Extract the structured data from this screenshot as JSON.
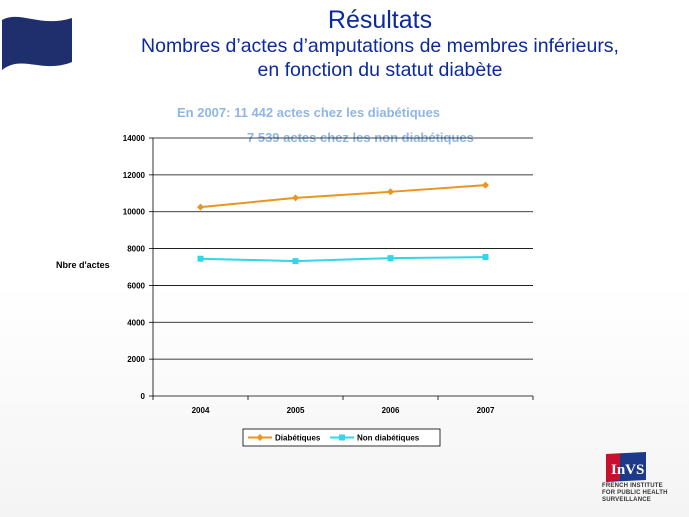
{
  "slide": {
    "title": "Résultats",
    "subtitle_line1": "Nombres d’actes d’amputations de membres inférieurs,",
    "subtitle_line2": "en fonction du statut diabète",
    "note_line1": "En 2007: 11 442 actes chez les diabétiques",
    "note_line2": "7 539 actes chez les non diabétiques"
  },
  "logo": {
    "mark": "InVS",
    "line1": "FRENCH INSTITUTE",
    "line2": "FOR PUBLIC HEALTH",
    "line3": "SURVEILLANCE"
  },
  "chart_data": {
    "type": "line",
    "title": "",
    "xlabel": "",
    "ylabel": "Nbre d'actes",
    "x": [
      "2004",
      "2005",
      "2006",
      "2007"
    ],
    "ylim": [
      0,
      14000
    ],
    "yticks": [
      0,
      2000,
      4000,
      6000,
      8000,
      10000,
      12000,
      14000
    ],
    "grid": "horizontal",
    "legend": "bottom",
    "series": [
      {
        "name": "Diabétiques",
        "values": [
          10250,
          10750,
          11080,
          11442
        ],
        "color": "#e8961e",
        "marker": "diamond"
      },
      {
        "name": "Non diabétiques",
        "values": [
          7450,
          7320,
          7480,
          7539
        ],
        "color": "#33d6e6",
        "marker": "square"
      }
    ]
  }
}
